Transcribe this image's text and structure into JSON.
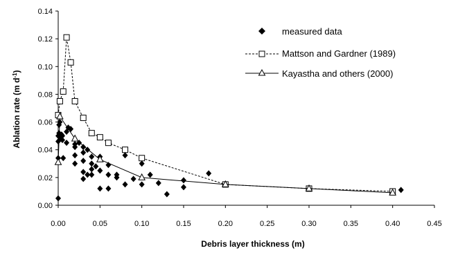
{
  "chart_data": {
    "type": "scatter",
    "xlabel": "Debris layer thickness (m)",
    "ylabel_text": "Ablation rate (m d",
    "ylabel_sup": "-1",
    "ylabel_close": ")",
    "xlim": [
      0,
      0.45
    ],
    "ylim": [
      0,
      0.14
    ],
    "x_ticks": [
      "0.00",
      "0.05",
      "0.10",
      "0.15",
      "0.20",
      "0.25",
      "0.30",
      "0.35",
      "0.40",
      "0.45"
    ],
    "y_ticks": [
      "0.00",
      "0.02",
      "0.04",
      "0.06",
      "0.08",
      "0.10",
      "0.12",
      "0.14"
    ],
    "grid": false,
    "legend_position": "top-right",
    "series": [
      {
        "name": "measured data",
        "style": "points",
        "marker": "diamond-filled",
        "color": "#000000",
        "points": [
          [
            0.0,
            0.005
          ],
          [
            0.0,
            0.034
          ],
          [
            0.0,
            0.046
          ],
          [
            0.0,
            0.05
          ],
          [
            0.001,
            0.052
          ],
          [
            0.001,
            0.058
          ],
          [
            0.002,
            0.06
          ],
          [
            0.003,
            0.048
          ],
          [
            0.004,
            0.051
          ],
          [
            0.005,
            0.047
          ],
          [
            0.005,
            0.05
          ],
          [
            0.006,
            0.034
          ],
          [
            0.01,
            0.045
          ],
          [
            0.01,
            0.053
          ],
          [
            0.012,
            0.056
          ],
          [
            0.015,
            0.055
          ],
          [
            0.02,
            0.042
          ],
          [
            0.02,
            0.036
          ],
          [
            0.02,
            0.044
          ],
          [
            0.02,
            0.03
          ],
          [
            0.025,
            0.045
          ],
          [
            0.03,
            0.038
          ],
          [
            0.03,
            0.042
          ],
          [
            0.03,
            0.032
          ],
          [
            0.03,
            0.024
          ],
          [
            0.03,
            0.019
          ],
          [
            0.035,
            0.04
          ],
          [
            0.035,
            0.022
          ],
          [
            0.04,
            0.035
          ],
          [
            0.04,
            0.03
          ],
          [
            0.04,
            0.026
          ],
          [
            0.04,
            0.022
          ],
          [
            0.045,
            0.028
          ],
          [
            0.05,
            0.035
          ],
          [
            0.05,
            0.012
          ],
          [
            0.05,
            0.025
          ],
          [
            0.06,
            0.029
          ],
          [
            0.06,
            0.022
          ],
          [
            0.06,
            0.012
          ],
          [
            0.07,
            0.022
          ],
          [
            0.07,
            0.02
          ],
          [
            0.08,
            0.036
          ],
          [
            0.08,
            0.015
          ],
          [
            0.09,
            0.019
          ],
          [
            0.1,
            0.03
          ],
          [
            0.1,
            0.015
          ],
          [
            0.11,
            0.022
          ],
          [
            0.12,
            0.016
          ],
          [
            0.13,
            0.008
          ],
          [
            0.15,
            0.018
          ],
          [
            0.15,
            0.013
          ],
          [
            0.18,
            0.023
          ],
          [
            0.41,
            0.011
          ]
        ]
      },
      {
        "name": "Mattson and Gardner (1989)",
        "style": "dashed-line",
        "marker": "square-open",
        "color": "#000000",
        "points": [
          [
            0.0,
            0.065
          ],
          [
            0.002,
            0.075
          ],
          [
            0.006,
            0.082
          ],
          [
            0.01,
            0.121
          ],
          [
            0.015,
            0.103
          ],
          [
            0.02,
            0.075
          ],
          [
            0.03,
            0.063
          ],
          [
            0.04,
            0.052
          ],
          [
            0.05,
            0.049
          ],
          [
            0.06,
            0.045
          ],
          [
            0.08,
            0.04
          ],
          [
            0.1,
            0.034
          ],
          [
            0.2,
            0.015
          ],
          [
            0.3,
            0.012
          ],
          [
            0.4,
            0.01
          ]
        ]
      },
      {
        "name": "Kayastha and others (2000)",
        "style": "solid-line",
        "marker": "triangle-open",
        "color": "#000000",
        "points": [
          [
            0.0,
            0.031
          ],
          [
            0.002,
            0.064
          ],
          [
            0.02,
            0.048
          ],
          [
            0.05,
            0.033
          ],
          [
            0.1,
            0.02
          ],
          [
            0.2,
            0.015
          ],
          [
            0.3,
            0.012
          ],
          [
            0.4,
            0.009
          ]
        ]
      }
    ]
  }
}
